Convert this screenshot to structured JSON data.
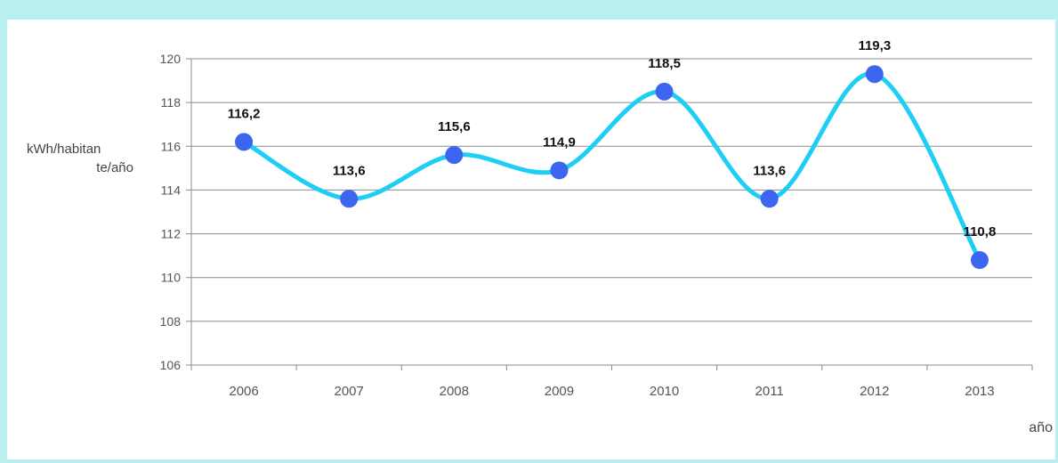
{
  "chart_data": {
    "type": "line",
    "title": "",
    "xlabel": "año",
    "ylabel_line1": "kWh/habitan",
    "ylabel_line2": "te/año",
    "categories": [
      "2006",
      "2007",
      "2008",
      "2009",
      "2010",
      "2011",
      "2012",
      "2013"
    ],
    "series": [
      {
        "values": [
          116.2,
          113.6,
          115.6,
          114.9,
          118.5,
          113.6,
          119.3,
          110.8
        ],
        "labels": [
          "116,2",
          "113,6",
          "115,6",
          "114,9",
          "118,5",
          "113,6",
          "119,3",
          "110,8"
        ]
      }
    ],
    "ylim": [
      106,
      120
    ],
    "yticks": [
      "106",
      "108",
      "110",
      "112",
      "114",
      "116",
      "118",
      "120"
    ],
    "grid": "horizontal",
    "line_color": "#1ecef5",
    "marker_color": "#3d66f0"
  }
}
